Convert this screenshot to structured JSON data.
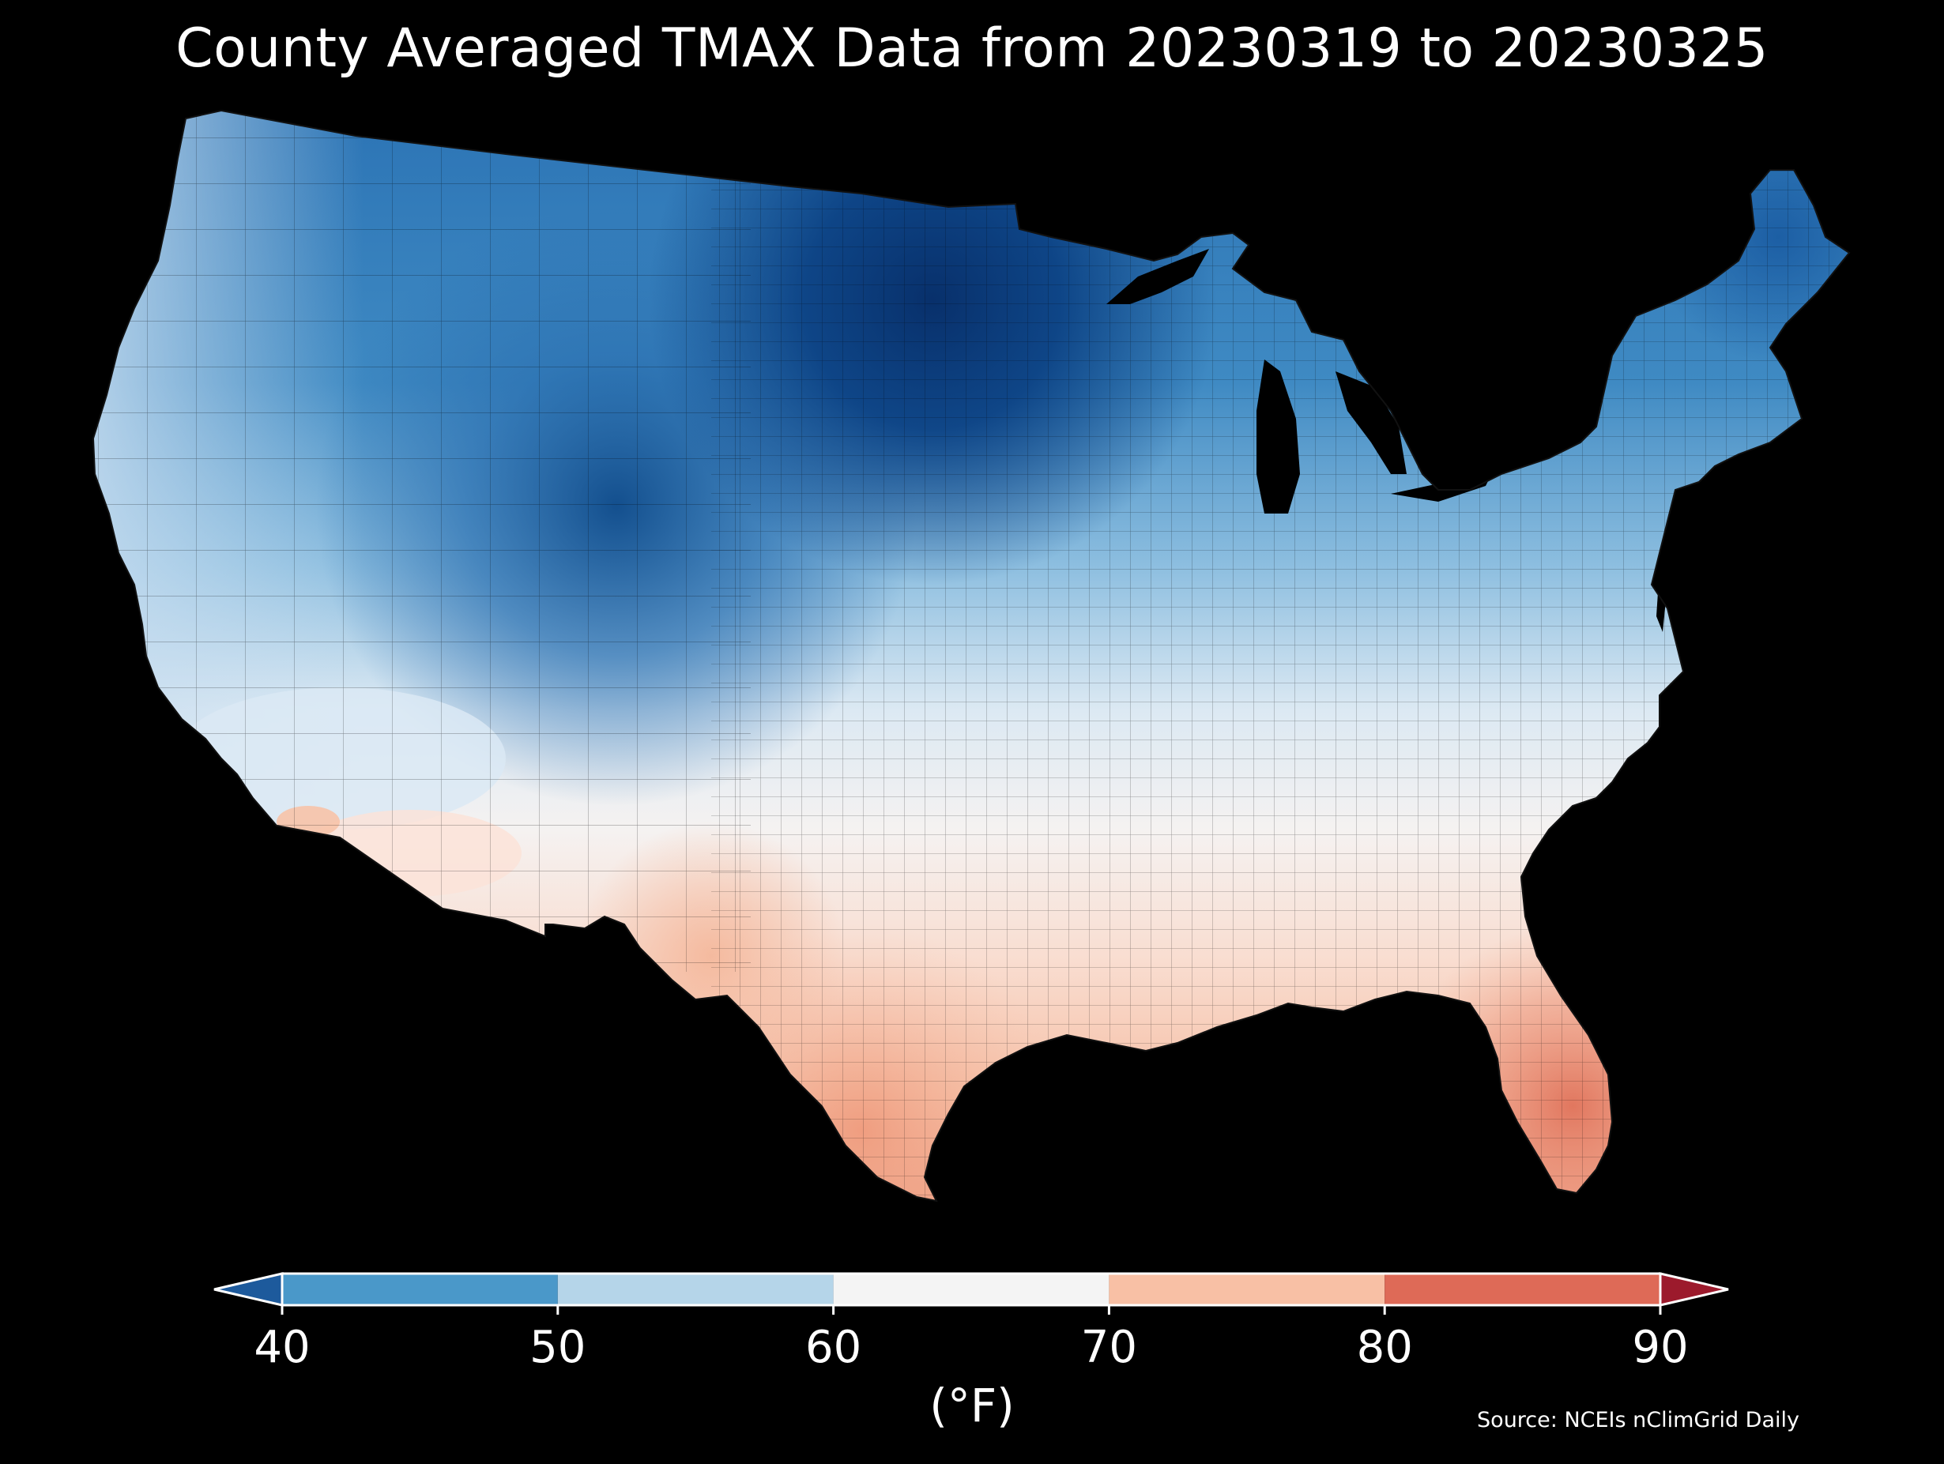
{
  "title": "County Averaged TMAX Data from 20230319 to 20230325",
  "source": "Source: NCEIs nClimGrid Daily",
  "colorbar": {
    "units_label": "(°F)",
    "ticks": [
      "40",
      "50",
      "60",
      "70",
      "80",
      "90"
    ],
    "bins": [
      {
        "from": 40,
        "to": 50,
        "color": "#4a98c9"
      },
      {
        "from": 50,
        "to": 60,
        "color": "#b5d5e9"
      },
      {
        "from": 60,
        "to": 70,
        "color": "#f4f4f4"
      },
      {
        "from": 70,
        "to": 80,
        "color": "#f8c0a5"
      },
      {
        "from": 80,
        "to": 90,
        "color": "#de6a57"
      }
    ],
    "under_color": "#1d5a9c",
    "over_color": "#9c1a2c"
  },
  "map": {
    "region": "contiguous United States",
    "colors": {
      "coldest": "#08306b",
      "cold": "#2171b5",
      "cool": "#6baed6",
      "mild": "#c6dbef",
      "neutral": "#f7f7f7",
      "warm": "#fbd0b9",
      "hot": "#e58267"
    }
  }
}
